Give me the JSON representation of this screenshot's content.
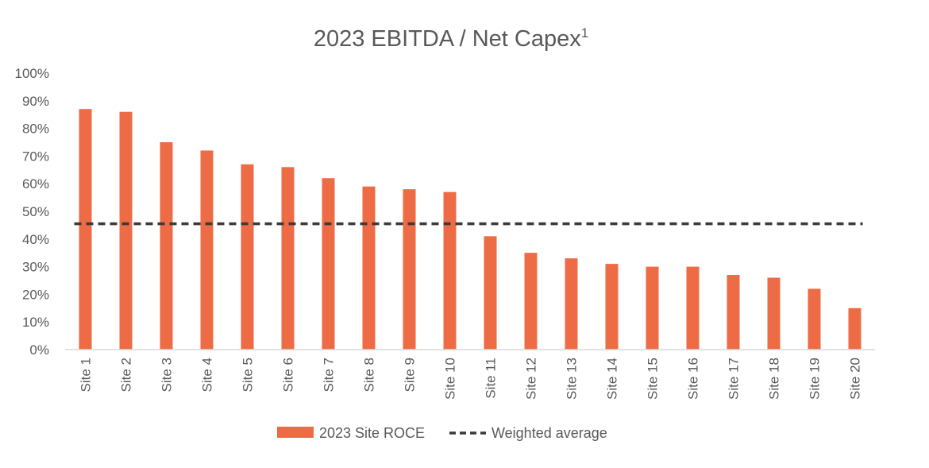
{
  "chart_data": {
    "type": "bar",
    "title": "2023 EBITDA / Net Capex",
    "title_superscript": "1",
    "xlabel": "",
    "ylabel": "",
    "ylim": [
      0,
      100
    ],
    "y_ticks": [
      "0%",
      "10%",
      "20%",
      "30%",
      "40%",
      "50%",
      "60%",
      "70%",
      "80%",
      "90%",
      "100%"
    ],
    "categories": [
      "Site 1",
      "Site 2",
      "Site 3",
      "Site 4",
      "Site 5",
      "Site 6",
      "Site 7",
      "Site 8",
      "Site 9",
      "Site 10",
      "Site 11",
      "Site 12",
      "Site 13",
      "Site 14",
      "Site 15",
      "Site 16",
      "Site 17",
      "Site 18",
      "Site 19",
      "Site 20"
    ],
    "series": [
      {
        "name": "2023 Site ROCE",
        "kind": "bar",
        "color": "#ED6B45",
        "values": [
          87,
          86,
          75,
          72,
          67,
          66,
          62,
          59,
          58,
          57,
          41,
          35,
          33,
          31,
          30,
          30,
          27,
          26,
          22,
          15
        ]
      },
      {
        "name": "Weighted average",
        "kind": "line-dashed",
        "color": "#3A3A3A",
        "value": 45.5
      }
    ],
    "legend": [
      "2023 Site ROCE",
      "Weighted average"
    ],
    "legend_position": "bottom",
    "grid": false
  }
}
